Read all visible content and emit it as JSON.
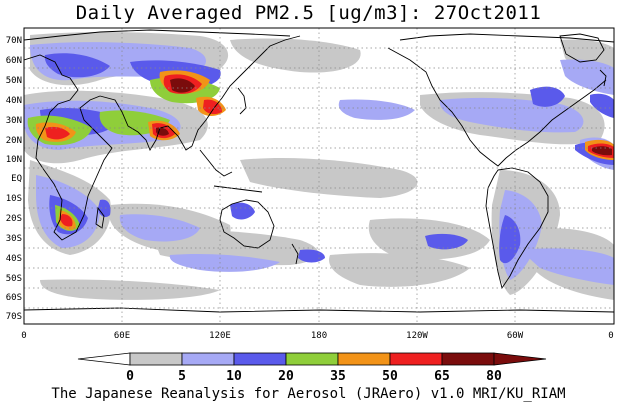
{
  "title": "Daily Averaged PM2.5 [ug/m3]: 27Oct2011",
  "footer": "The Japanese Reanalysis for Aerosol (JRAero) v1.0 MRI/KU_RIAM",
  "lat_ticks": [
    "70N",
    "60N",
    "50N",
    "40N",
    "30N",
    "20N",
    "10N",
    "EQ",
    "10S",
    "20S",
    "30S",
    "40S",
    "50S",
    "60S",
    "70S"
  ],
  "lon_ticks": [
    "0",
    "60E",
    "120E",
    "180",
    "120W",
    "60W",
    "0"
  ],
  "legend": {
    "labels": [
      "0",
      "5",
      "10",
      "20",
      "35",
      "50",
      "65",
      "80"
    ],
    "colors": [
      "#ffffff",
      "#c8c8c8",
      "#a6a9f5",
      "#5a5aeb",
      "#8fce3a",
      "#f29318",
      "#ee2020",
      "#7a0c0c"
    ]
  }
}
